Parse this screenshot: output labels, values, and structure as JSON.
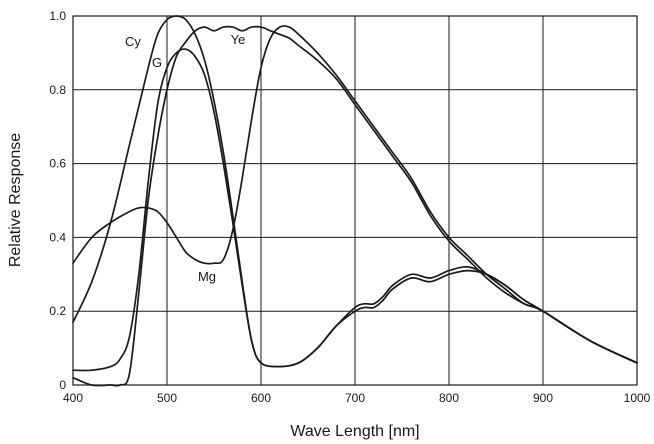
{
  "chart_data": {
    "type": "line",
    "xlabel": "Wave Length [nm]",
    "ylabel": "Relative Response",
    "xlim": [
      400,
      1000
    ],
    "ylim": [
      0,
      1.0
    ],
    "x_ticks": [
      "400",
      "500",
      "600",
      "700",
      "800",
      "900",
      "1000"
    ],
    "y_ticks": [
      "0",
      "0.2",
      "0.4",
      "0.6",
      "0.8",
      "1.0"
    ],
    "grid": true,
    "legend": "none",
    "series": [
      {
        "name": "Cy",
        "x": [
          400,
          420,
          440,
          460,
          480,
          490,
          500,
          510,
          520,
          530,
          540,
          550,
          560,
          570,
          580,
          590,
          600,
          620,
          640,
          660,
          680,
          700,
          710,
          720,
          730,
          740,
          760,
          780,
          800,
          820,
          840,
          860,
          880,
          900,
          950,
          1000
        ],
        "y": [
          0.17,
          0.28,
          0.44,
          0.65,
          0.86,
          0.95,
          0.99,
          1.0,
          0.99,
          0.95,
          0.88,
          0.77,
          0.63,
          0.46,
          0.28,
          0.12,
          0.06,
          0.05,
          0.06,
          0.1,
          0.16,
          0.21,
          0.22,
          0.22,
          0.24,
          0.27,
          0.3,
          0.29,
          0.31,
          0.32,
          0.3,
          0.27,
          0.23,
          0.2,
          0.12,
          0.06
        ]
      },
      {
        "name": "G",
        "x": [
          400,
          420,
          440,
          450,
          460,
          470,
          480,
          490,
          500,
          510,
          520,
          530,
          540,
          550,
          560,
          570,
          580,
          590,
          600,
          620,
          640,
          660,
          680,
          700,
          710,
          720,
          730,
          740,
          760,
          780,
          800,
          820,
          840,
          860,
          880,
          900,
          950,
          1000
        ],
        "y": [
          0.04,
          0.04,
          0.05,
          0.07,
          0.13,
          0.3,
          0.55,
          0.76,
          0.86,
          0.9,
          0.91,
          0.89,
          0.84,
          0.74,
          0.6,
          0.44,
          0.27,
          0.12,
          0.06,
          0.05,
          0.06,
          0.1,
          0.16,
          0.2,
          0.21,
          0.21,
          0.23,
          0.26,
          0.29,
          0.28,
          0.3,
          0.31,
          0.3,
          0.27,
          0.23,
          0.2,
          0.12,
          0.06
        ]
      },
      {
        "name": "Ye",
        "x": [
          400,
          420,
          440,
          450,
          460,
          470,
          480,
          490,
          500,
          510,
          520,
          530,
          540,
          550,
          560,
          570,
          580,
          590,
          600,
          610,
          620,
          630,
          640,
          660,
          680,
          700,
          720,
          740,
          760,
          780,
          800,
          820,
          840,
          860,
          880,
          900,
          950,
          1000
        ],
        "y": [
          0.02,
          0.0,
          0.0,
          0.0,
          0.03,
          0.25,
          0.5,
          0.67,
          0.8,
          0.89,
          0.93,
          0.96,
          0.97,
          0.96,
          0.97,
          0.97,
          0.96,
          0.97,
          0.97,
          0.96,
          0.95,
          0.94,
          0.92,
          0.88,
          0.83,
          0.76,
          0.69,
          0.62,
          0.55,
          0.46,
          0.39,
          0.34,
          0.29,
          0.25,
          0.22,
          0.2,
          0.12,
          0.06
        ]
      },
      {
        "name": "Mg",
        "x": [
          400,
          420,
          440,
          460,
          470,
          480,
          490,
          500,
          510,
          520,
          530,
          540,
          550,
          560,
          570,
          580,
          590,
          600,
          610,
          620,
          630,
          640,
          660,
          680,
          700,
          720,
          740,
          760,
          780,
          800,
          820,
          840,
          860,
          880,
          900,
          950,
          1000
        ],
        "y": [
          0.33,
          0.4,
          0.44,
          0.47,
          0.48,
          0.48,
          0.47,
          0.44,
          0.4,
          0.36,
          0.34,
          0.33,
          0.33,
          0.34,
          0.42,
          0.56,
          0.72,
          0.86,
          0.94,
          0.97,
          0.97,
          0.95,
          0.9,
          0.84,
          0.77,
          0.7,
          0.63,
          0.56,
          0.47,
          0.4,
          0.35,
          0.3,
          0.26,
          0.22,
          0.2,
          0.12,
          0.06
        ]
      }
    ]
  }
}
